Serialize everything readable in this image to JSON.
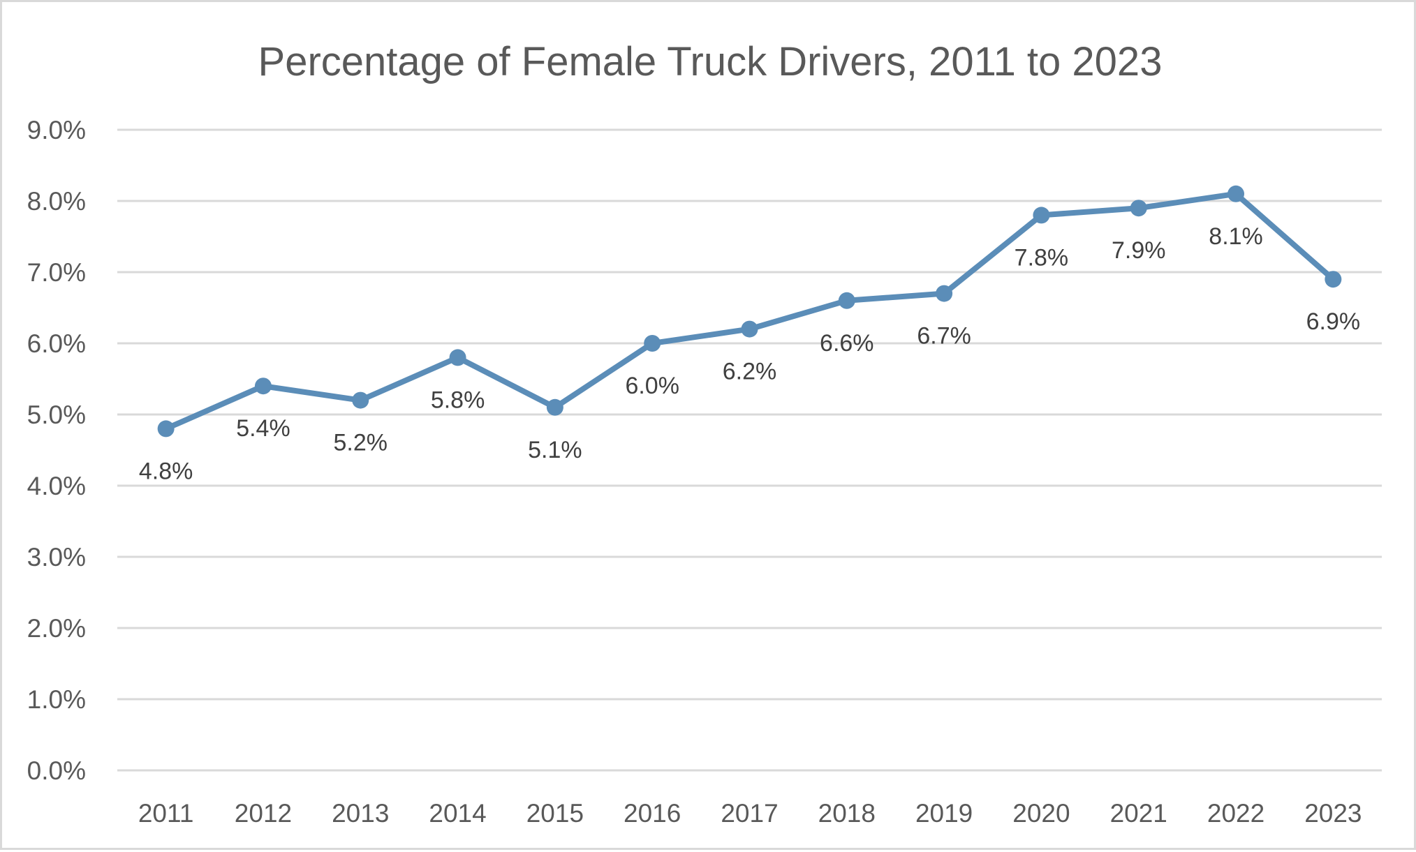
{
  "chart_data": {
    "type": "line",
    "title": "Percentage of Female Truck Drivers, 2011 to 2023",
    "xlabel": "",
    "ylabel": "",
    "categories": [
      "2011",
      "2012",
      "2013",
      "2014",
      "2015",
      "2016",
      "2017",
      "2018",
      "2019",
      "2020",
      "2021",
      "2022",
      "2023"
    ],
    "series": [
      {
        "name": "Percentage of Female Truck Drivers",
        "values": [
          4.8,
          5.4,
          5.2,
          5.8,
          5.1,
          6.0,
          6.2,
          6.6,
          6.7,
          7.8,
          7.9,
          8.1,
          6.9
        ],
        "data_labels": [
          "4.8%",
          "5.4%",
          "5.2%",
          "5.8%",
          "5.1%",
          "6.0%",
          "6.2%",
          "6.6%",
          "6.7%",
          "7.8%",
          "7.9%",
          "8.1%",
          "6.9%"
        ],
        "color": "#5b8db8",
        "markers": true,
        "label_position": "below"
      }
    ],
    "ylim": [
      0,
      9
    ],
    "yticks": [
      0,
      1,
      2,
      3,
      4,
      5,
      6,
      7,
      8,
      9
    ],
    "ytick_labels": [
      "0.0%",
      "1.0%",
      "2.0%",
      "3.0%",
      "4.0%",
      "5.0%",
      "6.0%",
      "7.0%",
      "8.0%",
      "9.0%"
    ],
    "grid": "horizontal",
    "legend": "none",
    "colors": {
      "text": "#595959",
      "data_label": "#404040",
      "gridline": "#d9d9d9",
      "border": "#d9d9d9"
    }
  }
}
